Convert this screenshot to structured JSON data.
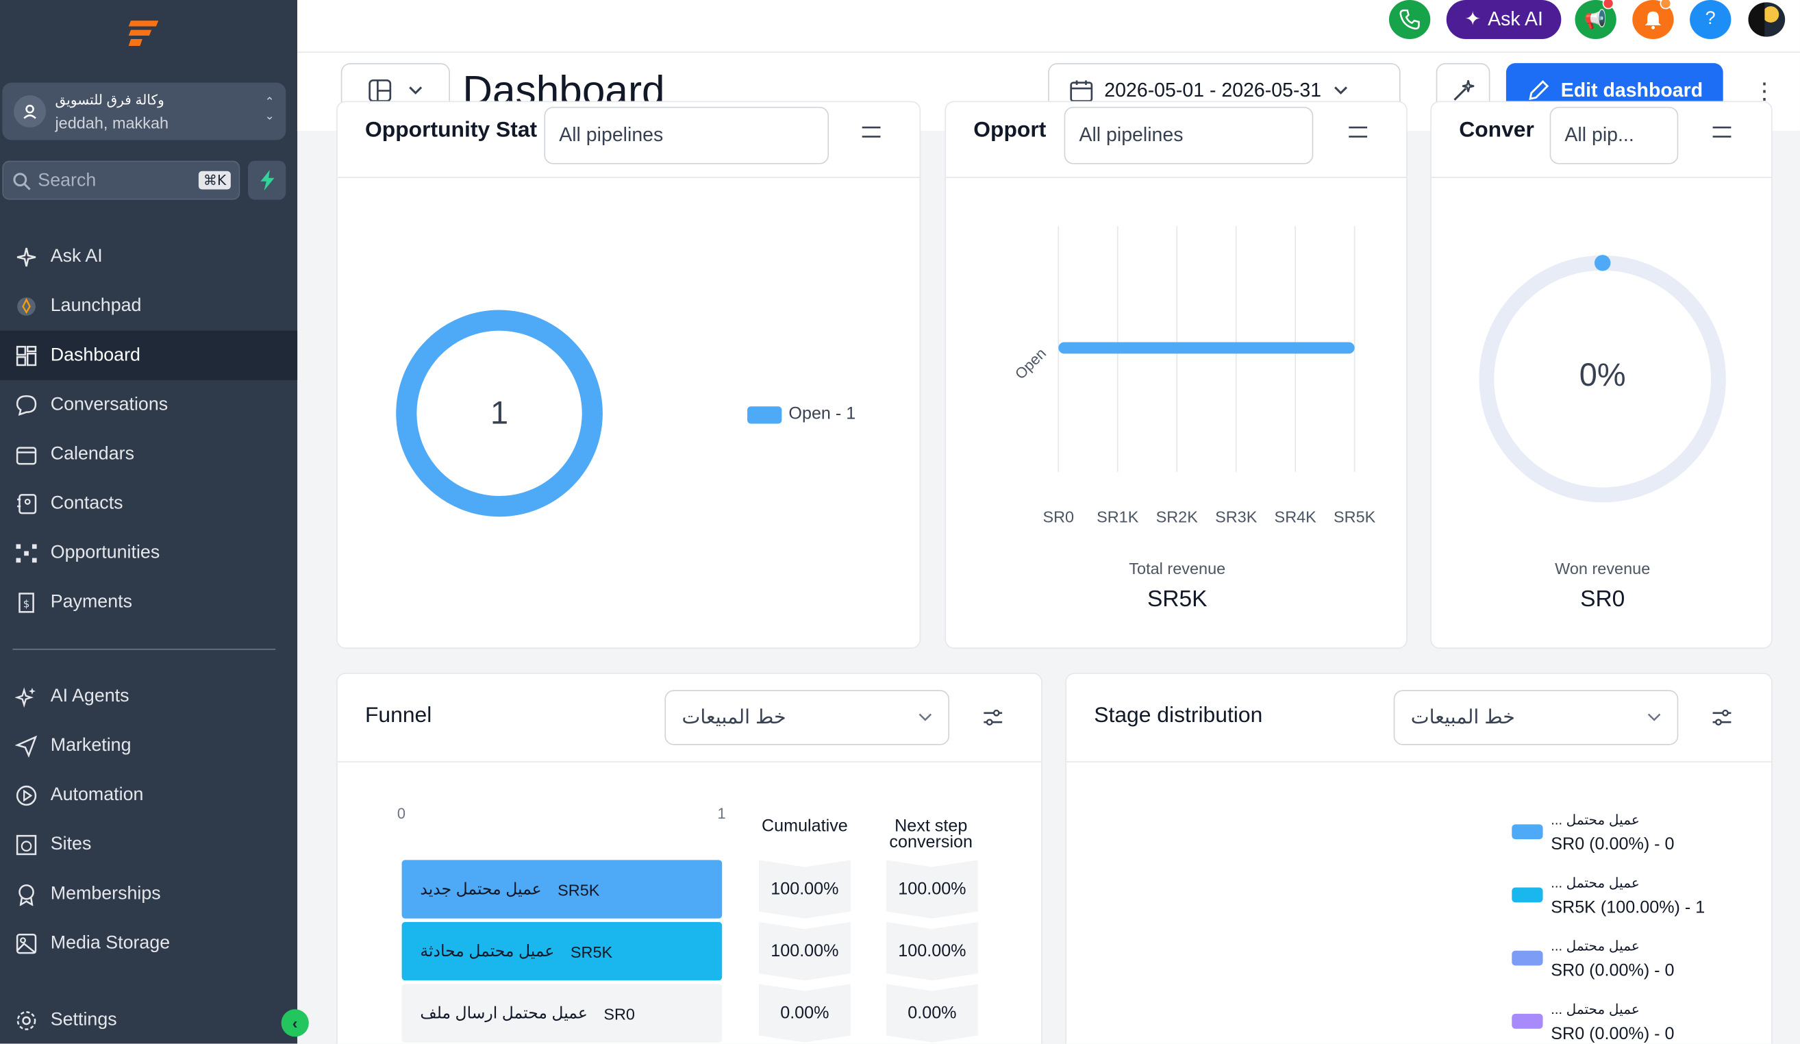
{
  "colors": {
    "sidebar_bg": "#2f3a4b",
    "accent_blue": "#1d6ef5",
    "chart_blue": "#4ea9f7",
    "chart_cyan": "#1ab7ee",
    "ask_ai_purple": "#4c1d95"
  },
  "sidebar": {
    "account_name": "وكالة فرق للتسويق",
    "account_location": "jeddah, makkah",
    "search_placeholder": "Search",
    "search_shortcut": "⌘K",
    "items": [
      {
        "label": "Ask AI",
        "icon": "sparkles-icon"
      },
      {
        "label": "Launchpad",
        "icon": "rocket-icon"
      },
      {
        "label": "Dashboard",
        "icon": "grid-icon",
        "active": true
      },
      {
        "label": "Conversations",
        "icon": "chat-bubble-icon"
      },
      {
        "label": "Calendars",
        "icon": "calendar-icon"
      },
      {
        "label": "Contacts",
        "icon": "contact-book-icon"
      },
      {
        "label": "Opportunities",
        "icon": "network-icon"
      },
      {
        "label": "Payments",
        "icon": "invoice-dollar-icon"
      }
    ],
    "items2": [
      {
        "label": "AI Agents",
        "icon": "ai-sparkle-icon"
      },
      {
        "label": "Marketing",
        "icon": "send-icon"
      },
      {
        "label": "Automation",
        "icon": "play-circle-icon"
      },
      {
        "label": "Sites",
        "icon": "globe-window-icon"
      },
      {
        "label": "Memberships",
        "icon": "award-icon"
      },
      {
        "label": "Media Storage",
        "icon": "image-icon"
      }
    ],
    "settings_label": "Settings"
  },
  "topbar": {
    "ask_ai_label": "Ask AI",
    "help_label": "?"
  },
  "header": {
    "title": "Dashboard",
    "date_range": "2026-05-01 - 2026-05-31",
    "edit_label": "Edit dashboard"
  },
  "widgets": {
    "opportunity_status": {
      "title_partial": "Opportunity Stat",
      "pipeline_select": "All pipelines",
      "center_value": "1",
      "legend": "Open - 1"
    },
    "opportunity_value": {
      "title_partial": "Opport",
      "pipeline_select": "All pipelines",
      "bar_label": "Open",
      "x_ticks": [
        "SR0",
        "SR1K",
        "SR2K",
        "SR3K",
        "SR4K",
        "SR5K"
      ],
      "total_label": "Total revenue",
      "total_value": "SR5K"
    },
    "conversion": {
      "title_partial": "Conver",
      "pipeline_select": "All pip...",
      "percent": "0%",
      "won_label": "Won revenue",
      "won_value": "SR0"
    },
    "funnel": {
      "title": "Funnel",
      "pipeline_select": "خط المبيعات",
      "axis_min": "0",
      "axis_max": "1",
      "col_cumulative": "Cumulative",
      "col_next_line1": "Next step",
      "col_next_line2": "conversion",
      "rows": [
        {
          "stage": "عميل محتمل جديد",
          "value": "SR5K",
          "cumulative": "100.00%",
          "next": "100.00%",
          "color": "#4ea9f7"
        },
        {
          "stage": "عميل محتمل  محادثة",
          "value": "SR5K",
          "cumulative": "100.00%",
          "next": "100.00%",
          "color": "#1ab7ee"
        },
        {
          "stage": "عميل محتمل  ارسال ملف",
          "value": "SR0",
          "cumulative": "0.00%",
          "next": "0.00%",
          "color": "#f3f4f6"
        }
      ]
    },
    "stage_distribution": {
      "title": "Stage distribution",
      "pipeline_select": "خط المبيعات",
      "items": [
        {
          "name": "عميل محتمل ...",
          "value": "SR0 (0.00%) - 0",
          "color": "#4ea9f7"
        },
        {
          "name": "عميل محتمل ...",
          "value": "SR5K (100.00%) - 1",
          "color": "#1ab7ee"
        },
        {
          "name": "عميل محتمل ...",
          "value": "SR0 (0.00%) - 0",
          "color": "#7c9cf5"
        },
        {
          "name": "عميل محتمل ...",
          "value": "SR0 (0.00%) - 0",
          "color": "#a78bfa"
        }
      ]
    }
  },
  "chart_data": [
    {
      "type": "pie",
      "categories": [
        "Open"
      ],
      "values": [
        1
      ],
      "center_label": "1"
    },
    {
      "type": "bar",
      "orientation": "horizontal",
      "categories": [
        "Open"
      ],
      "values": [
        5000
      ],
      "xlim": [
        0,
        5000
      ],
      "x_ticks": [
        "SR0",
        "SR1K",
        "SR2K",
        "SR3K",
        "SR4K",
        "SR5K"
      ]
    },
    {
      "type": "pie",
      "categories": [
        "Won"
      ],
      "values": [
        0
      ],
      "center_label": "0%"
    }
  ]
}
